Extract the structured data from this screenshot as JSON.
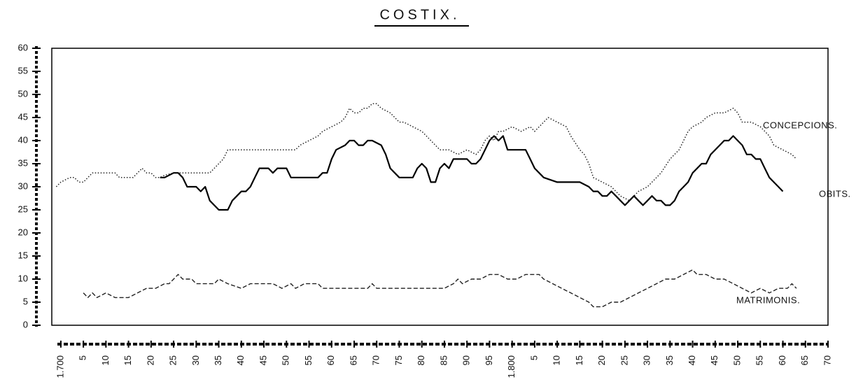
{
  "chart_data": {
    "type": "line",
    "title": "COSTIX.",
    "xlim": [
      1698,
      1870
    ],
    "ylim": [
      0,
      60
    ],
    "yticks": [
      0,
      5,
      10,
      15,
      20,
      25,
      30,
      35,
      40,
      45,
      50,
      55,
      60
    ],
    "xticks": [
      {
        "value": 1700,
        "label": "1.700"
      },
      {
        "value": 1705,
        "label": "5"
      },
      {
        "value": 1710,
        "label": "10"
      },
      {
        "value": 1715,
        "label": "15"
      },
      {
        "value": 1720,
        "label": "20"
      },
      {
        "value": 1725,
        "label": "25"
      },
      {
        "value": 1730,
        "label": "30"
      },
      {
        "value": 1735,
        "label": "35"
      },
      {
        "value": 1740,
        "label": "40"
      },
      {
        "value": 1745,
        "label": "45"
      },
      {
        "value": 1750,
        "label": "50"
      },
      {
        "value": 1755,
        "label": "55"
      },
      {
        "value": 1760,
        "label": "60"
      },
      {
        "value": 1765,
        "label": "65"
      },
      {
        "value": 1770,
        "label": "70"
      },
      {
        "value": 1775,
        "label": "75"
      },
      {
        "value": 1780,
        "label": "80"
      },
      {
        "value": 1785,
        "label": "85"
      },
      {
        "value": 1790,
        "label": "90"
      },
      {
        "value": 1795,
        "label": "95"
      },
      {
        "value": 1800,
        "label": "1.800"
      },
      {
        "value": 1805,
        "label": "5"
      },
      {
        "value": 1810,
        "label": "10"
      },
      {
        "value": 1815,
        "label": "15"
      },
      {
        "value": 1820,
        "label": "20"
      },
      {
        "value": 1825,
        "label": "25"
      },
      {
        "value": 1830,
        "label": "30"
      },
      {
        "value": 1835,
        "label": "35"
      },
      {
        "value": 1840,
        "label": "40"
      },
      {
        "value": 1845,
        "label": "45"
      },
      {
        "value": 1850,
        "label": "50"
      },
      {
        "value": 1855,
        "label": "55"
      },
      {
        "value": 1860,
        "label": "60"
      },
      {
        "value": 1865,
        "label": "65"
      },
      {
        "value": 1870,
        "label": "70"
      }
    ],
    "series": [
      {
        "name": "CONCEPCIONS.",
        "color": "#222",
        "style": "dotted",
        "x": [
          1699,
          1700,
          1702,
          1703,
          1704,
          1705,
          1706,
          1707,
          1712,
          1713,
          1716,
          1717,
          1718,
          1719,
          1720,
          1721,
          1722,
          1723,
          1725,
          1730,
          1733,
          1734,
          1735,
          1736,
          1737,
          1740,
          1750,
          1752,
          1753,
          1755,
          1757,
          1758,
          1760,
          1762,
          1763,
          1764,
          1765,
          1766,
          1767,
          1768,
          1769,
          1770,
          1771,
          1773,
          1775,
          1776,
          1778,
          1780,
          1782,
          1784,
          1786,
          1788,
          1790,
          1792,
          1793,
          1794,
          1795,
          1796,
          1797,
          1798,
          1800,
          1802,
          1804,
          1805,
          1807,
          1808,
          1810,
          1812,
          1813,
          1815,
          1816,
          1817,
          1818,
          1820,
          1822,
          1823,
          1824,
          1826,
          1827,
          1828,
          1830,
          1832,
          1833,
          1835,
          1837,
          1838,
          1839,
          1840,
          1842,
          1843,
          1845,
          1847,
          1849,
          1850,
          1851,
          1853,
          1855,
          1857,
          1858,
          1860,
          1862,
          1863
        ],
        "values": [
          30,
          31,
          32,
          32,
          31,
          31,
          32,
          33,
          33,
          32,
          32,
          33,
          34,
          33,
          33,
          32,
          32,
          32.5,
          33,
          33,
          33,
          34,
          35,
          36,
          38,
          38,
          38,
          38,
          39,
          40,
          41,
          42,
          43,
          44,
          45,
          47,
          46,
          46,
          47,
          47,
          48,
          48,
          47,
          46,
          44,
          44,
          43,
          42,
          40,
          38,
          38,
          37,
          38,
          37,
          38,
          40,
          41,
          40,
          42,
          42,
          43,
          42,
          43,
          42,
          44,
          45,
          44,
          43,
          41,
          38,
          37,
          35,
          32,
          31,
          30,
          29,
          28,
          27,
          28,
          29,
          30,
          32,
          33,
          36,
          38,
          40,
          42,
          43,
          44,
          45,
          46,
          46,
          47,
          46,
          44,
          44,
          43,
          41,
          39,
          38,
          37,
          36
        ]
      },
      {
        "name": "OBITS.",
        "color": "#000",
        "style": "solid",
        "x": [
          1722,
          1723,
          1725,
          1726,
          1727,
          1728,
          1730,
          1731,
          1732,
          1733,
          1734,
          1735,
          1737,
          1738,
          1739,
          1740,
          1741,
          1742,
          1743,
          1744,
          1746,
          1747,
          1748,
          1750,
          1751,
          1753,
          1755,
          1757,
          1758,
          1759,
          1760,
          1761,
          1763,
          1764,
          1765,
          1766,
          1767,
          1768,
          1769,
          1771,
          1772,
          1773,
          1774,
          1775,
          1777,
          1778,
          1779,
          1780,
          1781,
          1782,
          1783,
          1784,
          1785,
          1786,
          1787,
          1789,
          1790,
          1791,
          1792,
          1793,
          1794,
          1795,
          1796,
          1797,
          1798,
          1799,
          1800,
          1803,
          1804,
          1805,
          1806,
          1807,
          1810,
          1815,
          1817,
          1818,
          1819,
          1820,
          1821,
          1822,
          1823,
          1824,
          1825,
          1826,
          1827,
          1828,
          1829,
          1830,
          1831,
          1832,
          1833,
          1834,
          1835,
          1836,
          1837,
          1838,
          1839,
          1840,
          1842,
          1843,
          1844,
          1846,
          1847,
          1848,
          1849,
          1850,
          1851,
          1852,
          1853,
          1854,
          1855,
          1856,
          1857,
          1858,
          1859,
          1860
        ],
        "values": [
          32,
          32,
          33,
          33,
          32,
          30,
          30,
          29,
          30,
          27,
          26,
          25,
          25,
          27,
          28,
          29,
          29,
          30,
          32,
          34,
          34,
          33,
          34,
          34,
          32,
          32,
          32,
          32,
          33,
          33,
          36,
          38,
          39,
          40,
          40,
          39,
          39,
          40,
          40,
          39,
          37,
          34,
          33,
          32,
          32,
          32,
          34,
          35,
          34,
          31,
          31,
          34,
          35,
          34,
          36,
          36,
          36,
          35,
          35,
          36,
          38,
          40,
          41,
          40,
          41,
          38,
          38,
          38,
          36,
          34,
          33,
          32,
          31,
          31,
          30,
          29,
          29,
          28,
          28,
          29,
          28,
          27,
          26,
          27,
          28,
          27,
          26,
          27,
          28,
          27,
          27,
          26,
          26,
          27,
          29,
          30,
          31,
          33,
          35,
          35,
          37,
          39,
          40,
          40,
          41,
          40,
          39,
          37,
          37,
          36,
          36,
          34,
          32,
          31,
          30,
          29
        ]
      },
      {
        "name": "MATRIMONIS.",
        "color": "#222",
        "style": "dashed",
        "x": [
          1705,
          1706,
          1707,
          1708,
          1710,
          1712,
          1715,
          1717,
          1719,
          1721,
          1723,
          1724,
          1725,
          1726,
          1727,
          1729,
          1730,
          1734,
          1735,
          1737,
          1740,
          1742,
          1747,
          1749,
          1751,
          1752,
          1754,
          1757,
          1758,
          1768,
          1769,
          1770,
          1785,
          1787,
          1788,
          1789,
          1791,
          1793,
          1795,
          1797,
          1799,
          1801,
          1803,
          1806,
          1807,
          1809,
          1811,
          1813,
          1815,
          1817,
          1818,
          1820,
          1822,
          1824,
          1826,
          1828,
          1830,
          1832,
          1834,
          1836,
          1838,
          1840,
          1841,
          1843,
          1845,
          1847,
          1849,
          1851,
          1853,
          1855,
          1857,
          1859,
          1861,
          1862,
          1863
        ],
        "values": [
          7,
          6,
          7,
          6,
          7,
          6,
          6,
          7,
          8,
          8,
          9,
          9,
          10,
          11,
          10,
          10,
          9,
          9,
          10,
          9,
          8,
          9,
          9,
          8,
          9,
          8,
          9,
          9,
          8,
          8,
          9,
          8,
          8,
          9,
          10,
          9,
          10,
          10,
          11,
          11,
          10,
          10,
          11,
          11,
          10,
          9,
          8,
          7,
          6,
          5,
          4,
          4,
          5,
          5,
          6,
          7,
          8,
          9,
          10,
          10,
          11,
          12,
          11,
          11,
          10,
          10,
          9,
          8,
          7,
          8,
          7,
          8,
          8,
          9,
          8
        ]
      }
    ]
  }
}
